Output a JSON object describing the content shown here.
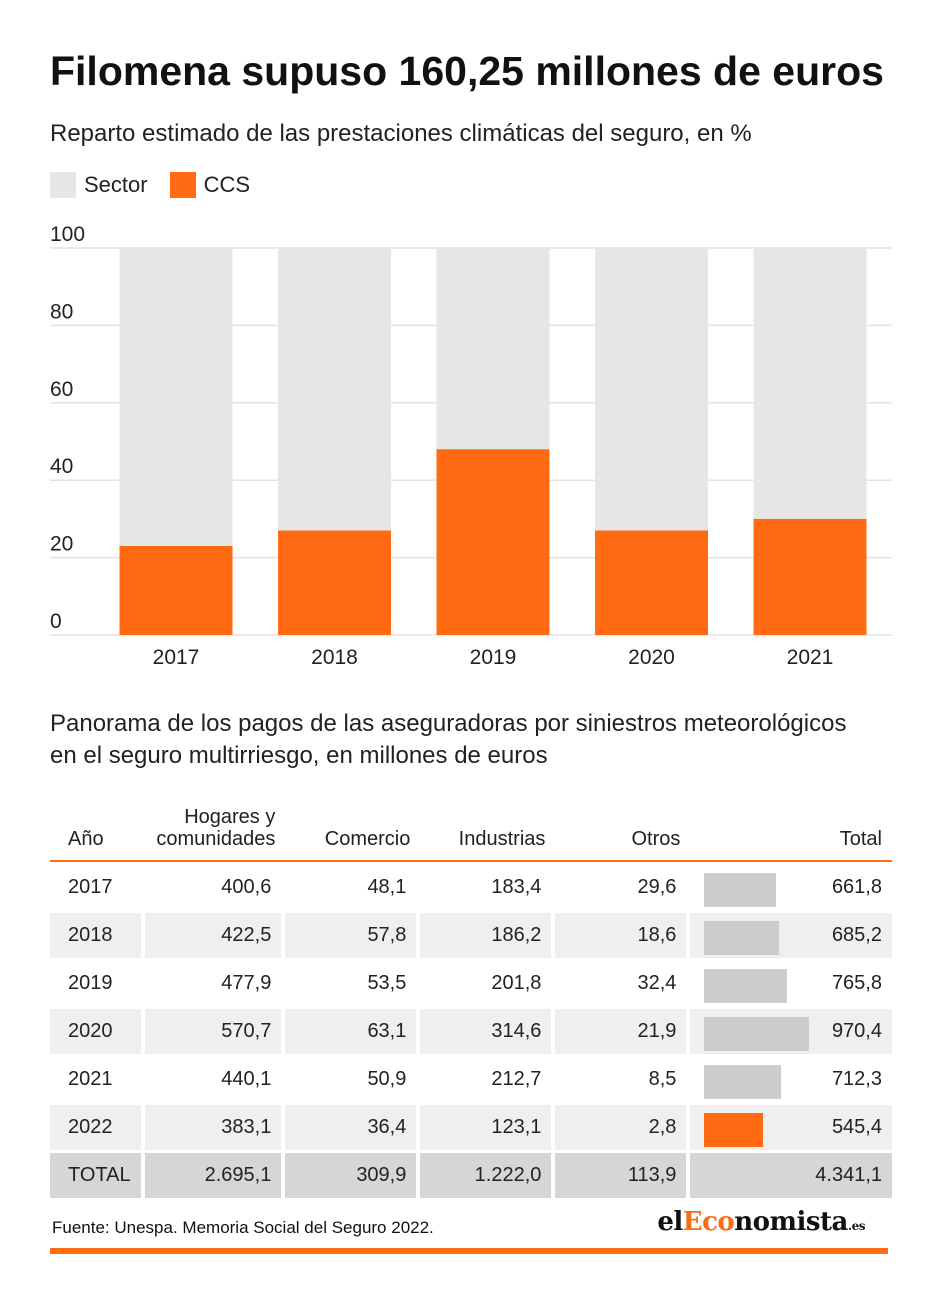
{
  "header": {
    "title": "Filomena supuso 160,25 millones de euros",
    "subtitle": "Reparto estimado de las prestaciones climáticas del seguro, en %"
  },
  "colors": {
    "sector": "#e6e6e6",
    "ccs": "#ff6a13",
    "grid": "#e3e3e3",
    "bar_gray": "#cccccc"
  },
  "legend": {
    "sector": "Sector",
    "ccs": "CCS"
  },
  "chart_data": {
    "type": "bar",
    "stacked": true,
    "categories": [
      "2017",
      "2018",
      "2019",
      "2020",
      "2021"
    ],
    "series": [
      {
        "name": "CCS",
        "values": [
          23,
          27,
          48,
          27,
          30
        ]
      },
      {
        "name": "Sector",
        "values": [
          77,
          73,
          52,
          73,
          70
        ]
      }
    ],
    "ylim": [
      0,
      100
    ],
    "yticks": [
      "100",
      "80",
      "60",
      "40",
      "20",
      "0"
    ],
    "grid": true,
    "legend_position": "top-left"
  },
  "table": {
    "title": "Panorama de los pagos de las aseguradoras por siniestros meteorológicos en el seguro multirriesgo, en millones de euros",
    "headers": {
      "year": "Año",
      "homes_line1": "Hogares y",
      "homes_line2": "comunidades",
      "commerce": "Comercio",
      "industry": "Industrias",
      "others": "Otros",
      "total": "Total"
    },
    "rows": [
      {
        "year": "2017",
        "homes": "400,6",
        "commerce": "48,1",
        "industry": "183,4",
        "others": "29,6",
        "total": "661,8",
        "total_num": 661.8
      },
      {
        "year": "2018",
        "homes": "422,5",
        "commerce": "57,8",
        "industry": "186,2",
        "others": "18,6",
        "total": "685,2",
        "total_num": 685.2
      },
      {
        "year": "2019",
        "homes": "477,9",
        "commerce": "53,5",
        "industry": "201,8",
        "others": "32,4",
        "total": "765,8",
        "total_num": 765.8
      },
      {
        "year": "2020",
        "homes": "570,7",
        "commerce": "63,1",
        "industry": "314,6",
        "others": "21,9",
        "total": "970,4",
        "total_num": 970.4
      },
      {
        "year": "2021",
        "homes": "440,1",
        "commerce": "50,9",
        "industry": "212,7",
        "others": "8,5",
        "total": "712,3",
        "total_num": 712.3
      },
      {
        "year": "2022",
        "homes": "383,1",
        "commerce": "36,4",
        "industry": "123,1",
        "others": "2,8",
        "total": "545,4",
        "total_num": 545.4
      }
    ],
    "totals": {
      "label": "TOTAL",
      "homes": "2.695,1",
      "commerce": "309,9",
      "industry": "1.222,0",
      "others": "113,9",
      "total": "4.341,1"
    }
  },
  "footer": {
    "source": "Fuente: Unespa. Memoria Social del Seguro 2022.",
    "logo_pre": "el",
    "logo_accent": "Eco",
    "logo_post": "nomista",
    "logo_tld": ".es"
  }
}
